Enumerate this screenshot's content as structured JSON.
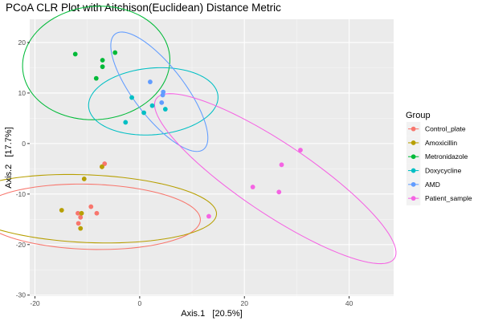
{
  "chart_data": {
    "type": "scatter",
    "title": "PCoA CLR Plot with Aitchison(Euclidean) Distance Metric",
    "xlabel": "Axis.1   [20.5%]",
    "ylabel": "Axis.2   [17.7%]",
    "xlim": [
      -21,
      48.5
    ],
    "ylim": [
      -30.2,
      24.6
    ],
    "x_ticks": [
      -20,
      0,
      20,
      40
    ],
    "x_tick_labels": [
      "-20",
      "0",
      "20",
      "40"
    ],
    "y_ticks": [
      -30,
      -20,
      -10,
      0,
      10,
      20
    ],
    "y_tick_labels": [
      "-30",
      "-20",
      "-10",
      "0",
      "10",
      "20"
    ],
    "grid": true,
    "legend_position": "right",
    "legend_title": "Group",
    "panel_background": "#EBEBEB",
    "series": [
      {
        "name": "Control_plate",
        "color": "#F8766D",
        "points": [
          [
            -6.7,
            -4.0
          ],
          [
            -7.2,
            -4.6
          ],
          [
            -9.3,
            -12.5
          ],
          [
            -8.2,
            -13.8
          ],
          [
            -11.8,
            -13.8
          ],
          [
            -11.3,
            -14.6
          ],
          [
            -11.7,
            -15.8
          ]
        ],
        "ellipse": {
          "cx": -9.5,
          "cy": -14.5,
          "rx": 6.45,
          "ry": 21.1,
          "angle": 88.3
        }
      },
      {
        "name": "Amoxicillin",
        "color": "#B79F00",
        "points": [
          [
            -7.2,
            -4.6
          ],
          [
            -10.6,
            -7.0
          ],
          [
            -14.9,
            -13.2
          ],
          [
            -11.1,
            -13.8
          ],
          [
            -11.3,
            -16.8
          ]
        ],
        "ellipse": {
          "cx": -9.9,
          "cy": -12.9,
          "rx": 6.7,
          "ry": 24.6,
          "angle": 87.5
        }
      },
      {
        "name": "Metronidazole",
        "color": "#00BA38",
        "points": [
          [
            -12.3,
            17.7
          ],
          [
            -4.7,
            18.0
          ],
          [
            -7.1,
            16.5
          ],
          [
            -7.1,
            15.2
          ],
          [
            -8.3,
            12.9
          ]
        ],
        "ellipse": {
          "cx": -8.3,
          "cy": 15.95,
          "rx": 14.1,
          "ry": 11.2,
          "angle": 6.3
        }
      },
      {
        "name": "Doxycycline",
        "color": "#00BFC4",
        "points": [
          [
            -1.5,
            9.1
          ],
          [
            2.4,
            7.5
          ],
          [
            0.8,
            6.1
          ],
          [
            4.9,
            6.8
          ],
          [
            -2.7,
            4.2
          ]
        ],
        "ellipse": {
          "cx": 2.6,
          "cy": 8.35,
          "rx": 12.4,
          "ry": 6.6,
          "angle": 5.1
        }
      },
      {
        "name": "AMD",
        "color": "#619CFF",
        "points": [
          [
            2.0,
            12.2
          ],
          [
            4.5,
            10.2
          ],
          [
            4.4,
            9.6
          ],
          [
            4.2,
            8.1
          ]
        ],
        "ellipse": {
          "cx": 3.75,
          "cy": 10.25,
          "rx": 4.9,
          "ry": 14.2,
          "angle": 36.2
        }
      },
      {
        "name": "Patient_sample",
        "color": "#F564E3",
        "points": [
          [
            30.7,
            -1.3
          ],
          [
            27.1,
            -4.2
          ],
          [
            21.6,
            -8.6
          ],
          [
            26.6,
            -9.6
          ],
          [
            13.2,
            -14.4
          ]
        ],
        "ellipse": {
          "cx": 25.9,
          "cy": -6.95,
          "rx": 27.7,
          "ry": 6.9,
          "angle": -34.9
        }
      }
    ]
  }
}
